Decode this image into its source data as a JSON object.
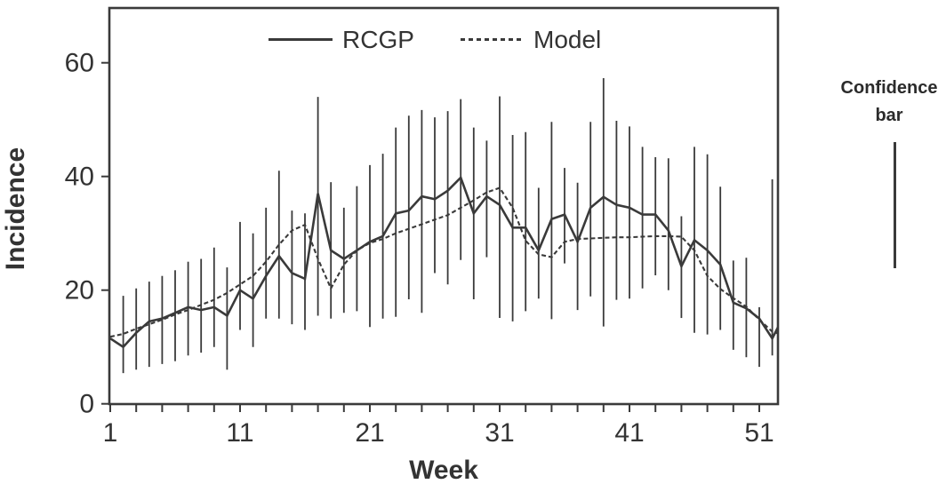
{
  "chart_data": {
    "type": "line",
    "title": "",
    "xlabel": "Week",
    "ylabel": "Incidence",
    "x_ticks_labeled": [
      1,
      11,
      21,
      31,
      41,
      51
    ],
    "x_minor_tick_step": 2,
    "xlim": [
      0.9,
      52.4
    ],
    "y_ticks": [
      0,
      20,
      40,
      60
    ],
    "ylim": [
      0,
      69.5
    ],
    "grid": false,
    "legend_position": "top-center",
    "x_unit": "week number, weekly points from week 1",
    "series": [
      {
        "name": "RCGP",
        "style": "solid",
        "values": [
          11.5,
          10,
          12.5,
          14.5,
          15,
          16,
          17,
          16.5,
          17,
          15.5,
          20,
          18.5,
          22.5,
          26,
          23,
          22,
          37,
          27,
          25.5,
          27,
          28.5,
          29.5,
          33.5,
          34,
          36.5,
          36,
          37.5,
          39.8,
          33.5,
          36.5,
          35,
          31,
          31,
          27,
          32.5,
          33.3,
          28.5,
          34.5,
          36.4,
          35,
          34.5,
          33.3,
          33.3,
          30.5,
          24.2,
          28.8,
          27,
          24.5,
          17.8,
          16.8,
          15,
          11.5,
          16
        ]
      },
      {
        "name": "Model",
        "style": "dashed",
        "values": [
          11.8,
          12.3,
          13.2,
          14,
          14.8,
          15.7,
          16.5,
          17.4,
          18.3,
          19.5,
          21,
          22.5,
          25,
          28,
          30.5,
          31.5,
          25.5,
          20.3,
          24.5,
          27,
          28.3,
          29,
          30,
          30.8,
          31.6,
          32.4,
          33.2,
          34.5,
          35.8,
          37.2,
          38,
          34.5,
          28.7,
          26.3,
          25.8,
          28.5,
          29,
          29.1,
          29.2,
          29.3,
          29.3,
          29.4,
          29.5,
          29.5,
          29.4,
          27,
          22.5,
          20.2,
          18.6,
          17.1,
          14.8,
          12.7,
          12
        ]
      }
    ],
    "error_bars": {
      "name": "Confidence bar",
      "low": [
        null,
        5.4,
        6,
        6.5,
        7,
        7.5,
        8.5,
        9,
        10,
        6,
        13,
        10,
        15,
        15,
        14,
        13,
        15.5,
        15,
        16,
        16.3,
        13.5,
        15,
        15.3,
        18.4,
        16,
        23,
        21,
        25.3,
        18.4,
        25.8,
        15.1,
        14.5,
        16.3,
        18.5,
        14.9,
        24.7,
        16.5,
        18.9,
        13.6,
        18.3,
        18.5,
        20.3,
        22.6,
        20,
        15.1,
        12.5,
        12.2,
        13,
        9.5,
        8.2,
        6.5,
        8.5,
        null
      ],
      "high": [
        null,
        19,
        20.3,
        21.5,
        22.5,
        23.5,
        25,
        25.5,
        27.5,
        24,
        32,
        30,
        34.5,
        41,
        34,
        33.5,
        54,
        39,
        34.5,
        38.3,
        42,
        44,
        48.6,
        50.7,
        51.7,
        50.4,
        51.5,
        53.6,
        48.6,
        46.3,
        54.1,
        47.3,
        47.8,
        38,
        49.6,
        41.5,
        38.9,
        49.6,
        57.3,
        49.8,
        48.8,
        45.2,
        43.4,
        43.2,
        33,
        45.2,
        43.9,
        38.2,
        25.2,
        25.7,
        17,
        39.5,
        null
      ]
    }
  },
  "legend": {
    "items": [
      {
        "label": "RCGP",
        "line": "solid"
      },
      {
        "label": "Model",
        "line": "dashed"
      }
    ]
  },
  "annotation": {
    "line1": "Confidence",
    "line2": "bar"
  },
  "colors": {
    "line": "#3a3a3a",
    "text": "#333333",
    "background": "#ffffff"
  }
}
